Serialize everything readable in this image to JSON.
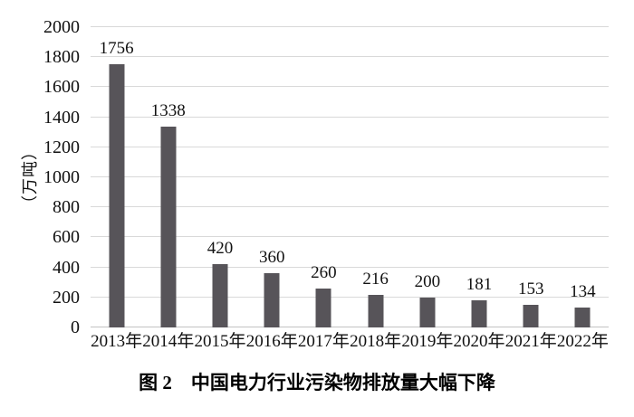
{
  "chart_data": {
    "type": "bar",
    "title": "图 2　中国电力行业污染物排放量大幅下降",
    "ylabel": "（万吨）",
    "xlabel": "",
    "categories": [
      "2013年",
      "2014年",
      "2015年",
      "2016年",
      "2017年",
      "2018年",
      "2019年",
      "2020年",
      "2021年",
      "2022年"
    ],
    "values": [
      1756,
      1338,
      420,
      360,
      260,
      216,
      200,
      181,
      153,
      134
    ],
    "ylim": [
      0,
      2000
    ],
    "yticks": [
      0,
      200,
      400,
      600,
      800,
      1000,
      1200,
      1400,
      1600,
      1800,
      2000
    ],
    "grid": "horizontal",
    "legend": "none",
    "bar_color": "#575459",
    "grid_color": "#d9d9d9",
    "axis_color": "#c3c3c3",
    "text_color": "#111111"
  }
}
